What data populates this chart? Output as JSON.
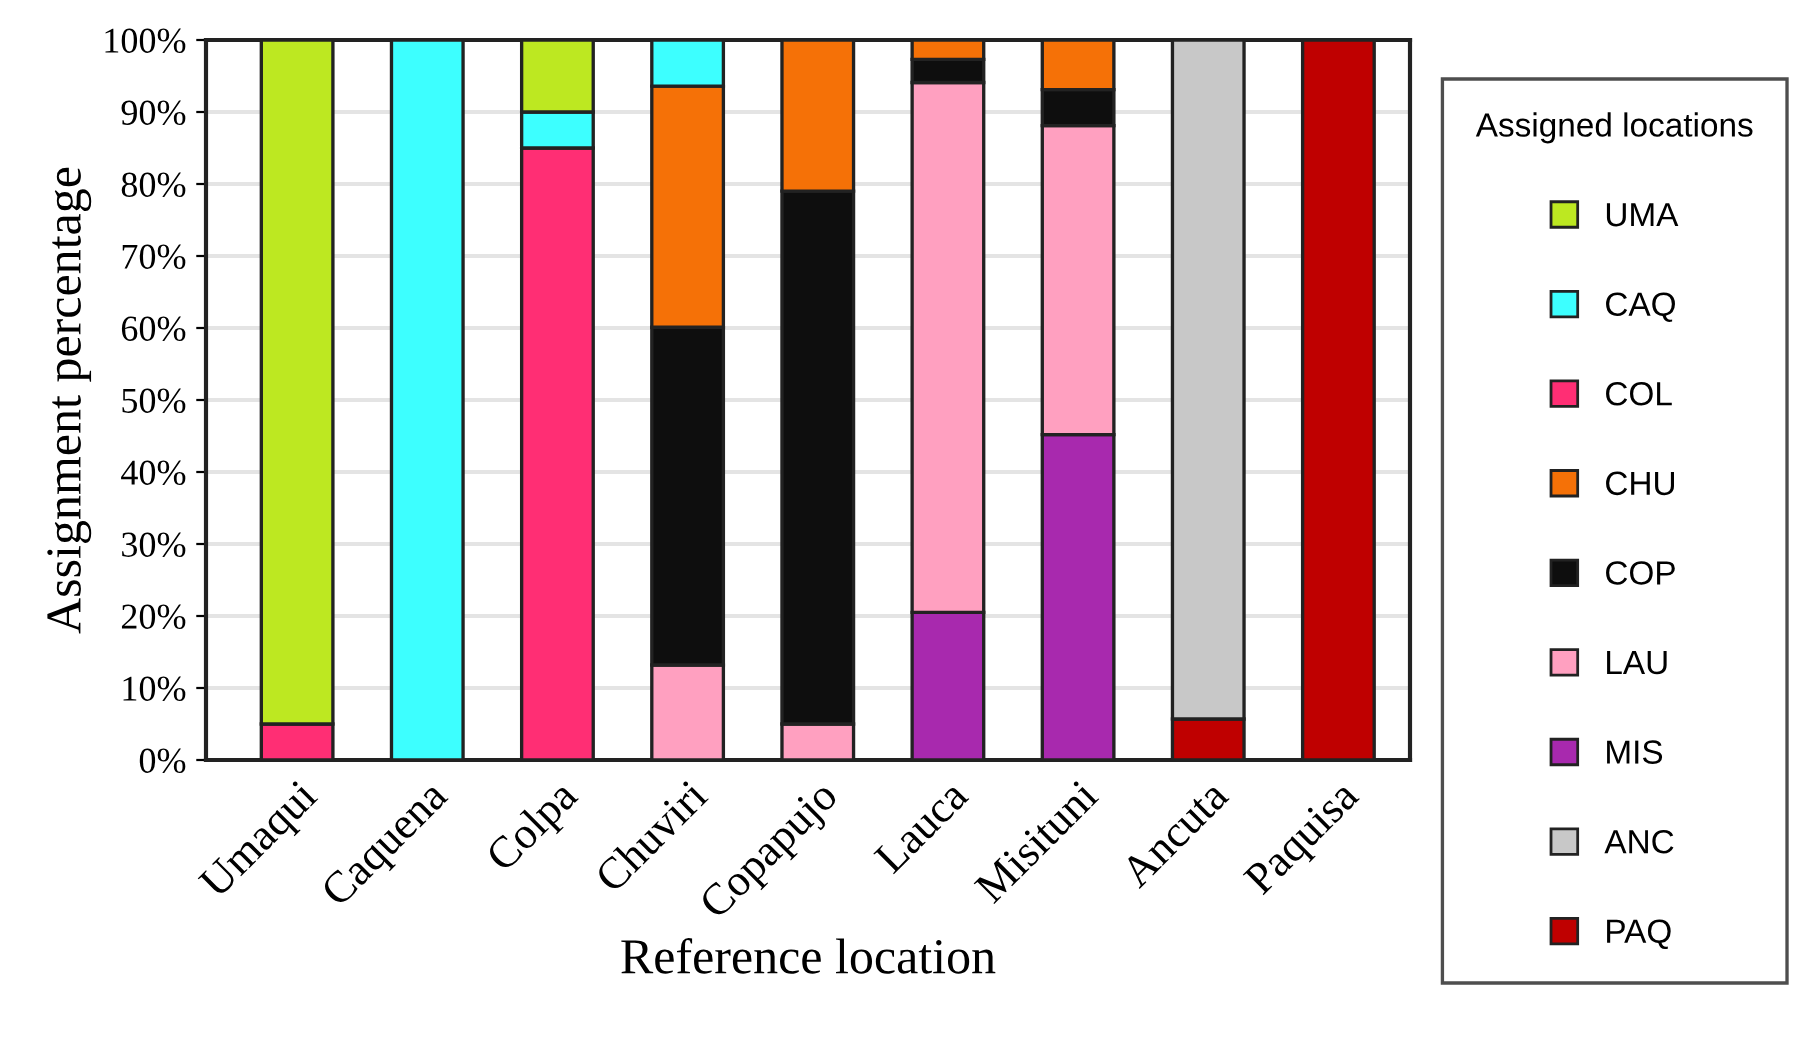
{
  "chart_data": {
    "type": "bar",
    "stacked": true,
    "xlabel": "Reference location",
    "ylabel": "Assignment percentage",
    "legend_title": "Assigned locations",
    "legend": "right",
    "grid": "y",
    "categories": [
      "Umaqui",
      "Caquena",
      "Colpa",
      "Chuviri",
      "Copapujo",
      "Lauca",
      "Misituni",
      "Ancuta",
      "Paquisa"
    ],
    "ylim": [
      0,
      100
    ],
    "yticks": [
      {
        "value": 0,
        "label": "0%"
      },
      {
        "value": 10,
        "label": "10%"
      },
      {
        "value": 20,
        "label": "20%"
      },
      {
        "value": 30,
        "label": "30%"
      },
      {
        "value": 40,
        "label": "40%"
      },
      {
        "value": 50,
        "label": "50%"
      },
      {
        "value": 60,
        "label": "60%"
      },
      {
        "value": 70,
        "label": "70%"
      },
      {
        "value": 80,
        "label": "80%"
      },
      {
        "value": 90,
        "label": "90%"
      },
      {
        "value": 100,
        "label": "100%"
      }
    ],
    "series": [
      {
        "name": "PAQ",
        "color": "#bf0000",
        "values": [
          null,
          null,
          null,
          null,
          null,
          null,
          null,
          5.7,
          100
        ]
      },
      {
        "name": "ANC",
        "color": "#c8c8c8",
        "values": [
          null,
          null,
          null,
          null,
          null,
          null,
          null,
          94.3,
          null
        ]
      },
      {
        "name": "MIS",
        "color": "#a829ae",
        "values": [
          null,
          null,
          null,
          null,
          null,
          20.5,
          45.2,
          null,
          null
        ]
      },
      {
        "name": "LAU",
        "color": "#ffa0c0",
        "values": [
          null,
          null,
          null,
          13.2,
          5,
          73.6,
          42.9,
          null,
          null
        ]
      },
      {
        "name": "COP",
        "color": "#0e0e0e",
        "values": [
          null,
          null,
          null,
          46.9,
          74,
          3.2,
          5,
          null,
          null
        ]
      },
      {
        "name": "CHU",
        "color": "#f57107",
        "values": [
          null,
          null,
          null,
          33.5,
          21,
          2.7,
          6.9,
          null,
          null
        ]
      },
      {
        "name": "COL",
        "color": "#ff2e74",
        "values": [
          5,
          null,
          85,
          null,
          null,
          null,
          null,
          null,
          null
        ]
      },
      {
        "name": "CAQ",
        "color": "#3dffff",
        "values": [
          null,
          100,
          5,
          6.4,
          null,
          null,
          null,
          null,
          null
        ]
      },
      {
        "name": "UMA",
        "color": "#bde821",
        "values": [
          95,
          null,
          10,
          null,
          null,
          null,
          null,
          null,
          null
        ]
      }
    ]
  }
}
